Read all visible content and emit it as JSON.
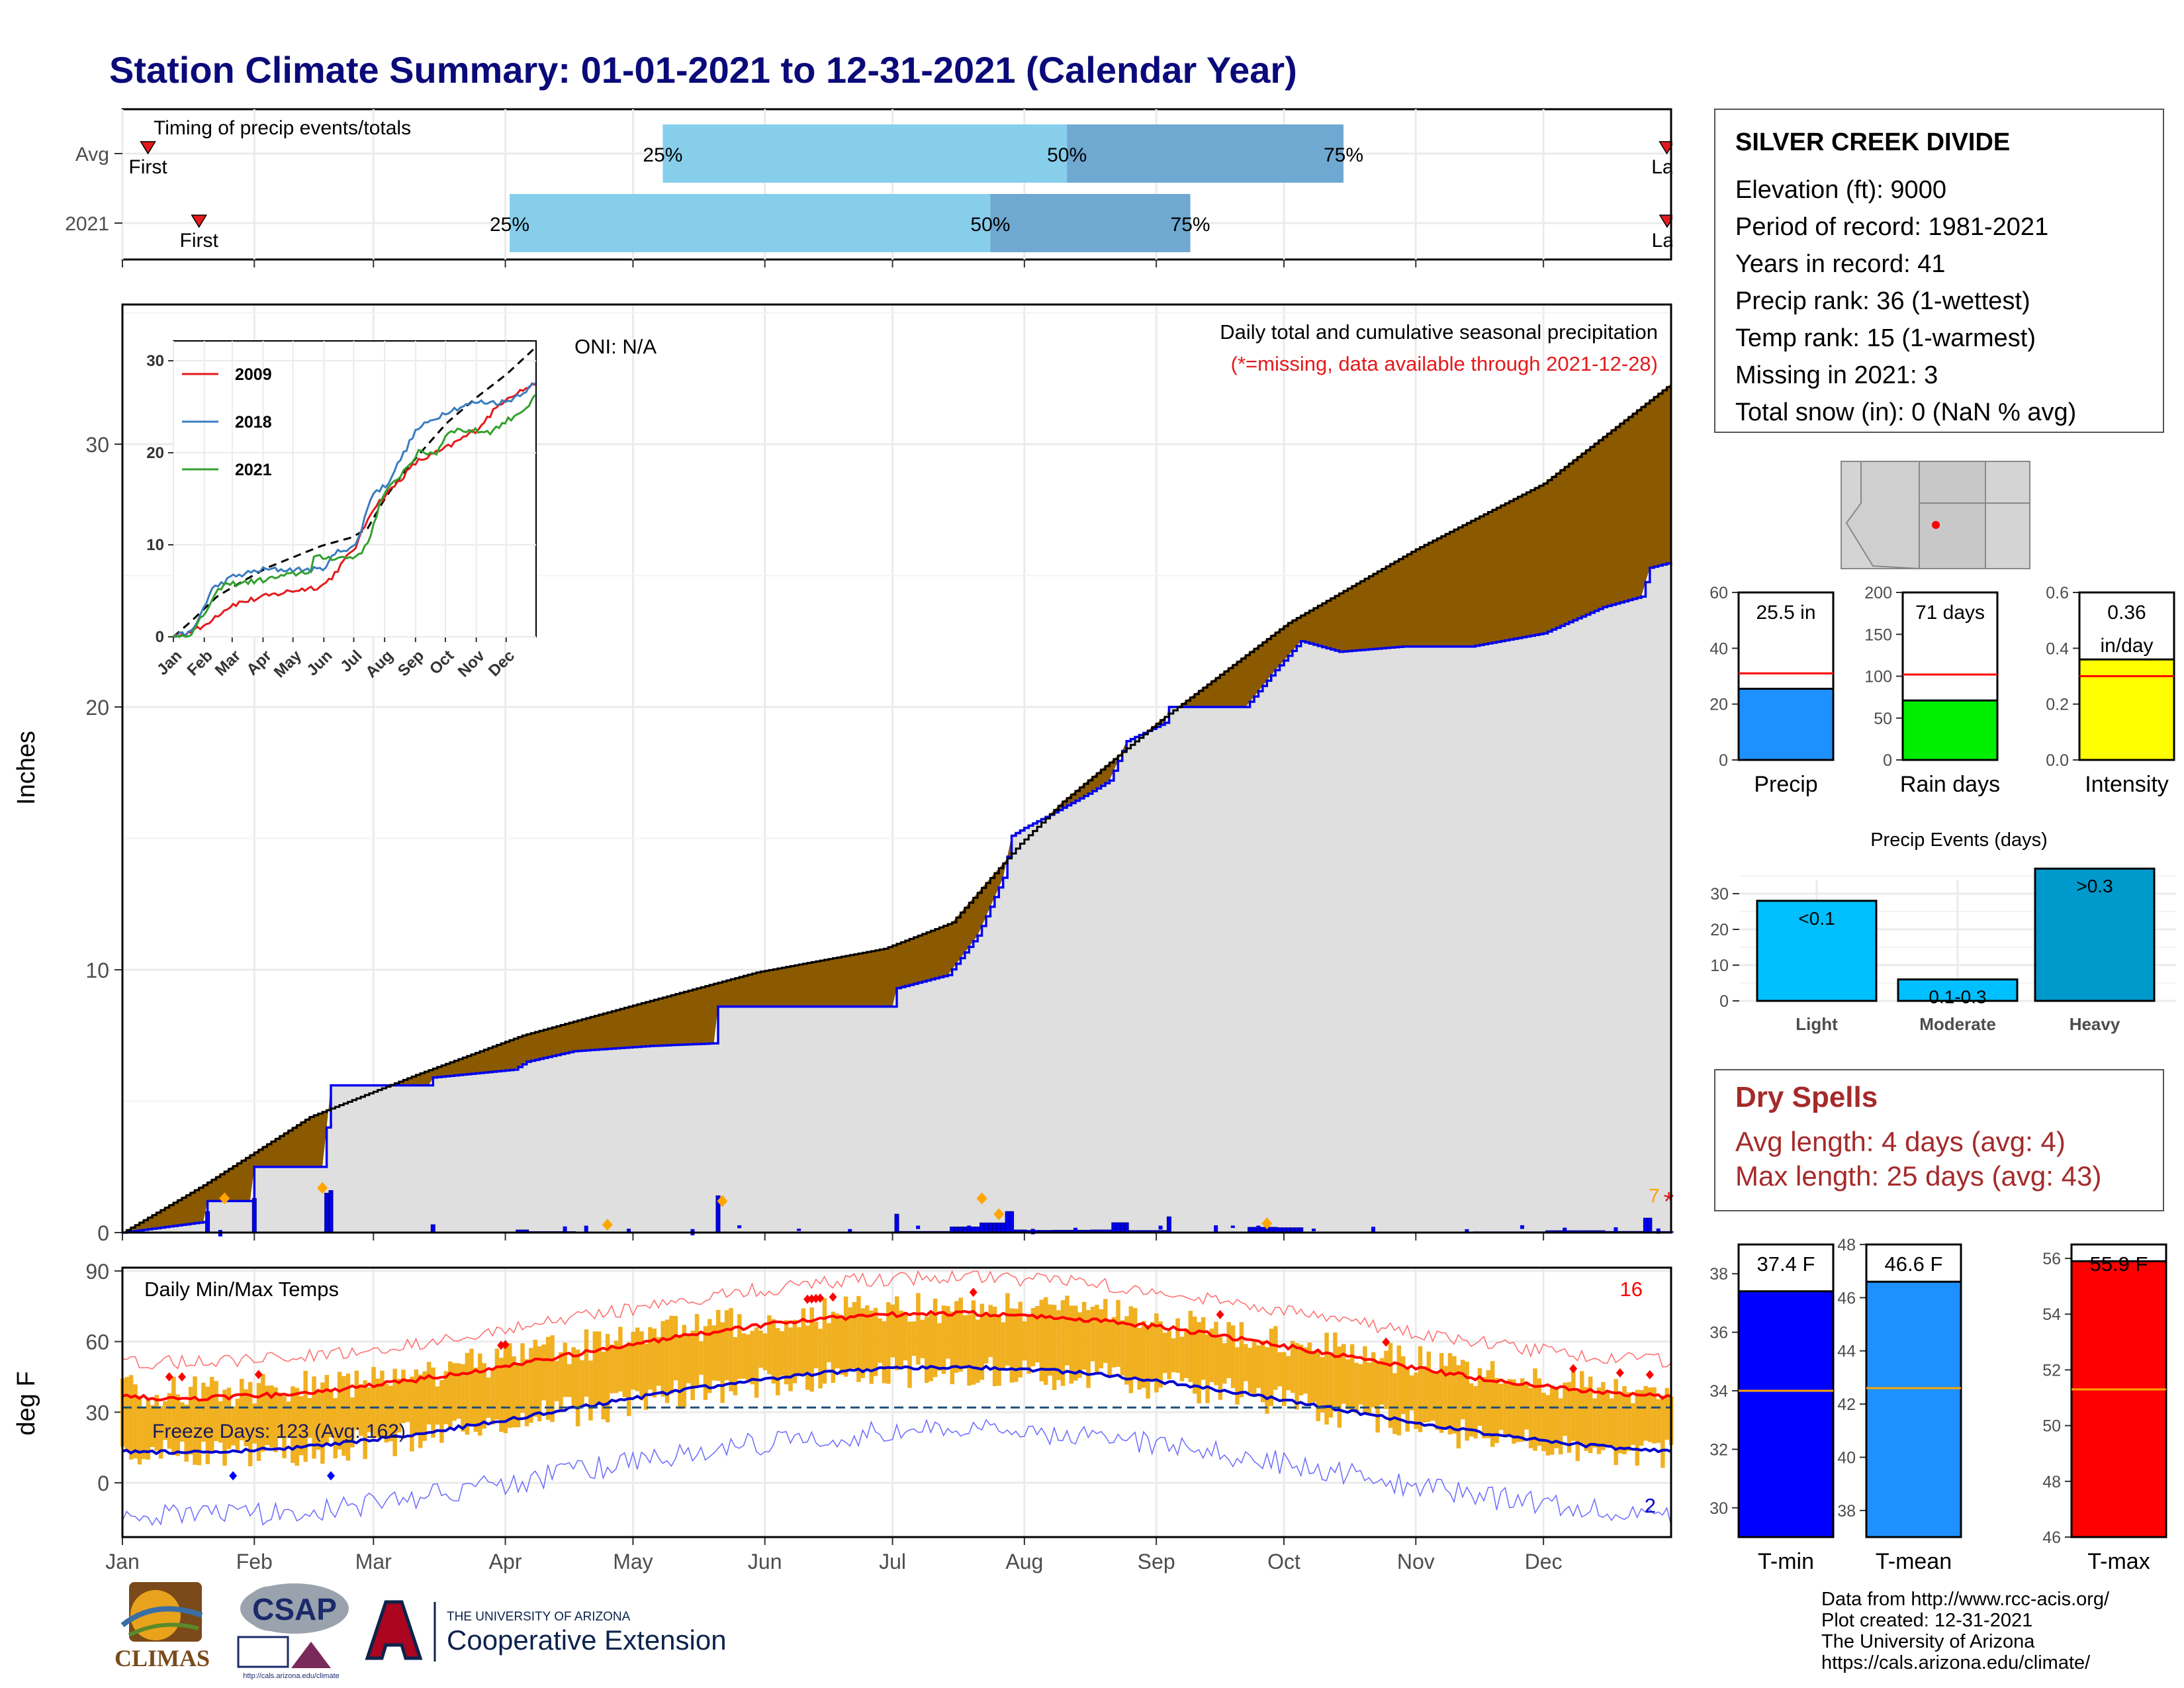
{
  "title": "Station Climate Summary: 01-01-2021 to 12-31-2021 (Calendar Year)",
  "months": [
    "Jan",
    "Feb",
    "Mar",
    "Apr",
    "May",
    "Jun",
    "Jul",
    "Aug",
    "Sep",
    "Oct",
    "Nov",
    "Dec"
  ],
  "timing": {
    "title": "Timing of precip events/totals",
    "first_label": "First",
    "last_label": "Last",
    "rows": [
      {
        "label": "Avg",
        "first_day": 7,
        "last_day": 364,
        "q25": 128,
        "q50": 223,
        "q75": 288,
        "q25_label": "25%",
        "q50_label": "50%",
        "q75_label": "75%"
      },
      {
        "label": "2021",
        "first_day": 19,
        "last_day": 366,
        "q25": 92,
        "q50": 205,
        "q75": 252,
        "q25_label": "25%",
        "q50_label": "50%",
        "q75_label": "75%"
      }
    ],
    "colors": {
      "light": "#87ceeb",
      "dark": "#6fa8d0",
      "marker": "#e31a1c"
    }
  },
  "precip": {
    "ylabel": "Inches",
    "yticks": [
      "0",
      "10",
      "20",
      "30"
    ],
    "oni": "ONI: N/A",
    "annot1": "Daily total and cumulative seasonal precipitation",
    "annot2": "(*=missing, data available through 2021-12-28)",
    "missing_count": "7",
    "colors": {
      "deficit": "#8b5a00",
      "surplus": "#1a8a1a",
      "obs": "#0000ee",
      "fill": "#dfdfdf",
      "avg_line": "#000000",
      "ext": "#ffa500",
      "missing": "#e31a1c"
    }
  },
  "inset": {
    "series": [
      {
        "name": "2009",
        "color": "#e31a1c"
      },
      {
        "name": "2018",
        "color": "#3a7cc0"
      },
      {
        "name": "2021",
        "color": "#33a02c"
      }
    ],
    "yticks": [
      "0",
      "10",
      "20",
      "30"
    ],
    "xticks": [
      "Jan",
      "Feb",
      "Mar",
      "Apr",
      "May",
      "Jun",
      "Jul",
      "Aug",
      "Sep",
      "Oct",
      "Nov",
      "Dec"
    ]
  },
  "temps": {
    "ylabel": "deg F",
    "title": "Daily Min/Max Temps",
    "yticks": [
      "0",
      "30",
      "60",
      "90"
    ],
    "freeze_label": "Freeze Days: 123 (Avg: 162)",
    "count_hot": "16",
    "count_cold": "2",
    "colors": {
      "bars": "#f0b020",
      "max_avg": "#ff0000",
      "min_avg": "#0000cd",
      "max_rec": "#ff6b6b",
      "min_rec": "#6b6bff",
      "freeze": "#1f4e79"
    }
  },
  "station": {
    "name": "SILVER CREEK DIVIDE",
    "elevation": "Elevation (ft): 9000",
    "period": "Period of record: 1981-2021",
    "years": "Years in record: 41",
    "precip_rank": "Precip rank: 36 (1-wettest)",
    "temp_rank": "Temp rank: 15 (1-warmest)",
    "missing": "Missing in 2021: 3",
    "snow": "Total snow (in): 0 (NaN % avg)"
  },
  "mini_bars": [
    {
      "label": "Precip",
      "value": 25.5,
      "value_label": "25.5 in",
      "avg": 31,
      "ymax": 60,
      "ticks": [
        "0",
        "20",
        "40",
        "60"
      ],
      "color": "#1e90ff"
    },
    {
      "label": "Rain days",
      "value": 71,
      "value_label": "71 days",
      "avg": 102,
      "ymax": 200,
      "ticks": [
        "0",
        "50",
        "100",
        "150",
        "200"
      ],
      "color": "#00ee00"
    },
    {
      "label": "Intensity",
      "value": 0.36,
      "value_label": "0.36 in/day",
      "avg": 0.3,
      "ymax": 0.6,
      "ticks": [
        "0.0",
        "0.2",
        "0.4",
        "0.6"
      ],
      "color": "#ffff00"
    }
  ],
  "events": {
    "title": "Precip Events (days)",
    "categories": [
      "Light",
      "Moderate",
      "Heavy"
    ],
    "values": [
      28,
      6,
      37
    ],
    "bar_labels": [
      "<0.1",
      "0.1-0.3",
      ">0.3"
    ],
    "yticks": [
      "0",
      "10",
      "20",
      "30"
    ],
    "color_light": "#00bfff",
    "color_heavy": "#0099cc"
  },
  "dry_spells": {
    "title": "Dry Spells",
    "avg": "Avg length: 4 days (avg: 4)",
    "max": "Max length: 25 days (avg: 43)"
  },
  "temp_bars": [
    {
      "label": "T-min",
      "value": 37.4,
      "value_label": "37.4 F",
      "avg": 34.0,
      "ylim": [
        29,
        39
      ],
      "ticks": [
        "30",
        "32",
        "34",
        "36",
        "38"
      ],
      "color": "#0000ff"
    },
    {
      "label": "T-mean",
      "value": 46.6,
      "value_label": "46.6 F",
      "avg": 42.6,
      "ylim": [
        37,
        48
      ],
      "ticks": [
        "38",
        "40",
        "42",
        "44",
        "46",
        "48"
      ],
      "color": "#1e90ff"
    },
    {
      "label": "T-max",
      "value": 55.9,
      "value_label": "55.9 F",
      "avg": 51.3,
      "ylim": [
        46,
        56.5
      ],
      "ticks": [
        "46",
        "48",
        "50",
        "52",
        "54",
        "56"
      ],
      "color": "#ff0000"
    }
  ],
  "logos": {
    "climas": "CLIMAS",
    "csap": "CSAP",
    "csap_url": "http://cals.arizona.edu/climate",
    "ua_line1": "THE UNIVERSITY OF ARIZONA",
    "ua_line2": "Cooperative Extension"
  },
  "credits": [
    "Data from http://www.rcc-acis.org/",
    "Plot created: 12-31-2021",
    "The University of Arizona",
    "https://cals.arizona.edu/climate/"
  ]
}
